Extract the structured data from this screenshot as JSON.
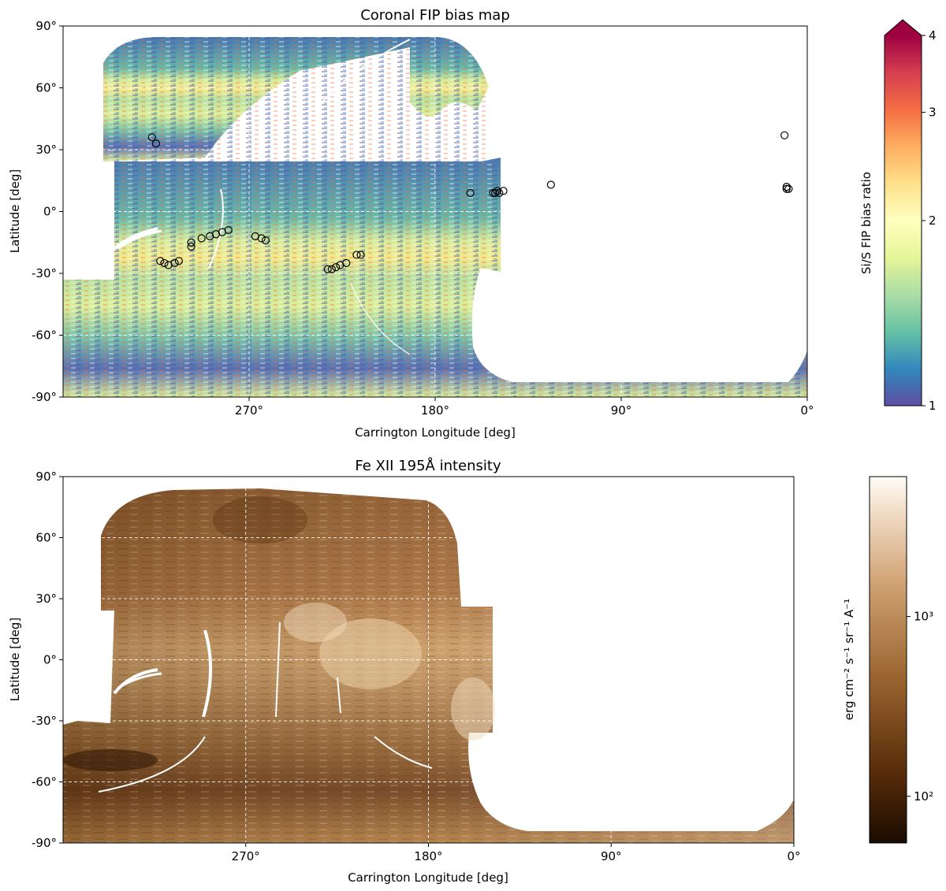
{
  "chart_data": [
    {
      "type": "heatmap",
      "title": "Coronal FIP bias map",
      "xlabel": "Carrington Longitude [deg]",
      "ylabel": "Latitude [deg]",
      "xlim": [
        360,
        0
      ],
      "ylim": [
        -90,
        90
      ],
      "x_ticks": [
        90,
        180,
        270,
        0
      ],
      "x_tick_labels": [
        "90°",
        "180°",
        "270°",
        "0°"
      ],
      "y_ticks": [
        90,
        60,
        30,
        0,
        -30,
        -60,
        -90
      ],
      "y_tick_labels": [
        "90°",
        "60°",
        "30°",
        "0°",
        "-30°",
        "-60°",
        "-90°"
      ],
      "grid": true,
      "colormap": "Spectral_r",
      "colorbar": {
        "label": "Si/S FIP bias ratio",
        "range": [
          1,
          4
        ],
        "scale": "log",
        "ticks": [
          1,
          2,
          3,
          4
        ],
        "tick_labels": [
          "1",
          "2",
          "3",
          "4"
        ],
        "extend": "max"
      },
      "markers": [
        {
          "lon": 317,
          "lat": 36
        },
        {
          "lon": 315,
          "lat": 33
        },
        {
          "lon": 313,
          "lat": -24
        },
        {
          "lon": 311,
          "lat": -25
        },
        {
          "lon": 309,
          "lat": -26
        },
        {
          "lon": 306,
          "lat": -25
        },
        {
          "lon": 304,
          "lat": -24
        },
        {
          "lon": 298,
          "lat": -17
        },
        {
          "lon": 298,
          "lat": -15
        },
        {
          "lon": 293,
          "lat": -13
        },
        {
          "lon": 289,
          "lat": -12
        },
        {
          "lon": 286,
          "lat": -11
        },
        {
          "lon": 283,
          "lat": -10
        },
        {
          "lon": 280,
          "lat": -9
        },
        {
          "lon": 267,
          "lat": -12
        },
        {
          "lon": 264,
          "lat": -13
        },
        {
          "lon": 262,
          "lat": -14
        },
        {
          "lon": 151,
          "lat": 9
        },
        {
          "lon": 149,
          "lat": 9
        },
        {
          "lon": 147,
          "lat": 10
        },
        {
          "lon": 163,
          "lat": 9
        },
        {
          "lon": 150,
          "lat": 10
        },
        {
          "lon": 152,
          "lat": 9
        },
        {
          "lon": 232,
          "lat": -28
        },
        {
          "lon": 230,
          "lat": -28
        },
        {
          "lon": 228,
          "lat": -27
        },
        {
          "lon": 226,
          "lat": -26
        },
        {
          "lon": 223,
          "lat": -25
        },
        {
          "lon": 218,
          "lat": -21
        },
        {
          "lon": 216,
          "lat": -21
        },
        {
          "lon": 124,
          "lat": 13
        },
        {
          "lon": 11,
          "lat": 37
        },
        {
          "lon": 10,
          "lat": 12
        },
        {
          "lon": 10,
          "lat": 11
        },
        {
          "lon": 9,
          "lat": 11
        }
      ]
    },
    {
      "type": "heatmap",
      "title": "Fe XII 195Å intensity",
      "xlabel": "Carrington Longitude [deg]",
      "ylabel": "Latitude [deg]",
      "xlim": [
        360,
        0
      ],
      "ylim": [
        -90,
        90
      ],
      "x_ticks": [
        90,
        180,
        270,
        0
      ],
      "x_tick_labels": [
        "90°",
        "180°",
        "270°",
        "0°"
      ],
      "y_ticks": [
        90,
        60,
        30,
        0,
        -30,
        -60,
        -90
      ],
      "y_tick_labels": [
        "90°",
        "60°",
        "30°",
        "0°",
        "-30°",
        "-60°",
        "-90°"
      ],
      "grid": true,
      "colormap": "copper-brown (sdoaia193-like)",
      "colorbar": {
        "label": "erg cm⁻² s⁻¹ sr⁻¹ A⁻¹",
        "range": [
          55,
          6000
        ],
        "scale": "log",
        "ticks": [
          100,
          1000
        ],
        "tick_labels": [
          "10²",
          "10³"
        ]
      }
    }
  ]
}
